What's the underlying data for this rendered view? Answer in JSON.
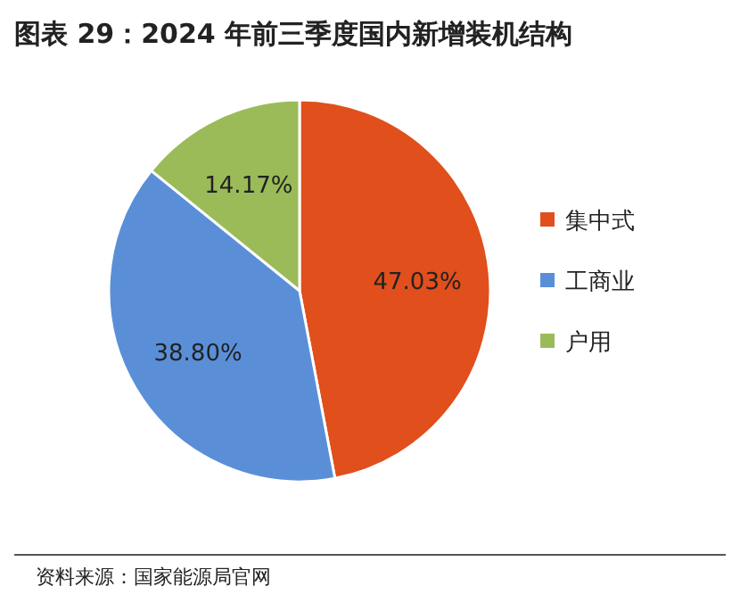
{
  "chart_data": {
    "type": "pie",
    "title": "图表 29：2024 年前三季度国内新增装机结构",
    "categories": [
      "集中式",
      "工商业",
      "户用"
    ],
    "values": [
      47.03,
      38.8,
      14.17
    ],
    "value_labels": [
      "47.03%",
      "38.80%",
      "14.17%"
    ],
    "colors": [
      "#e04f1c",
      "#5a8fd8",
      "#9bbb59"
    ],
    "legend": "right",
    "annotations": [
      "资料来源：国家能源局官网"
    ]
  }
}
